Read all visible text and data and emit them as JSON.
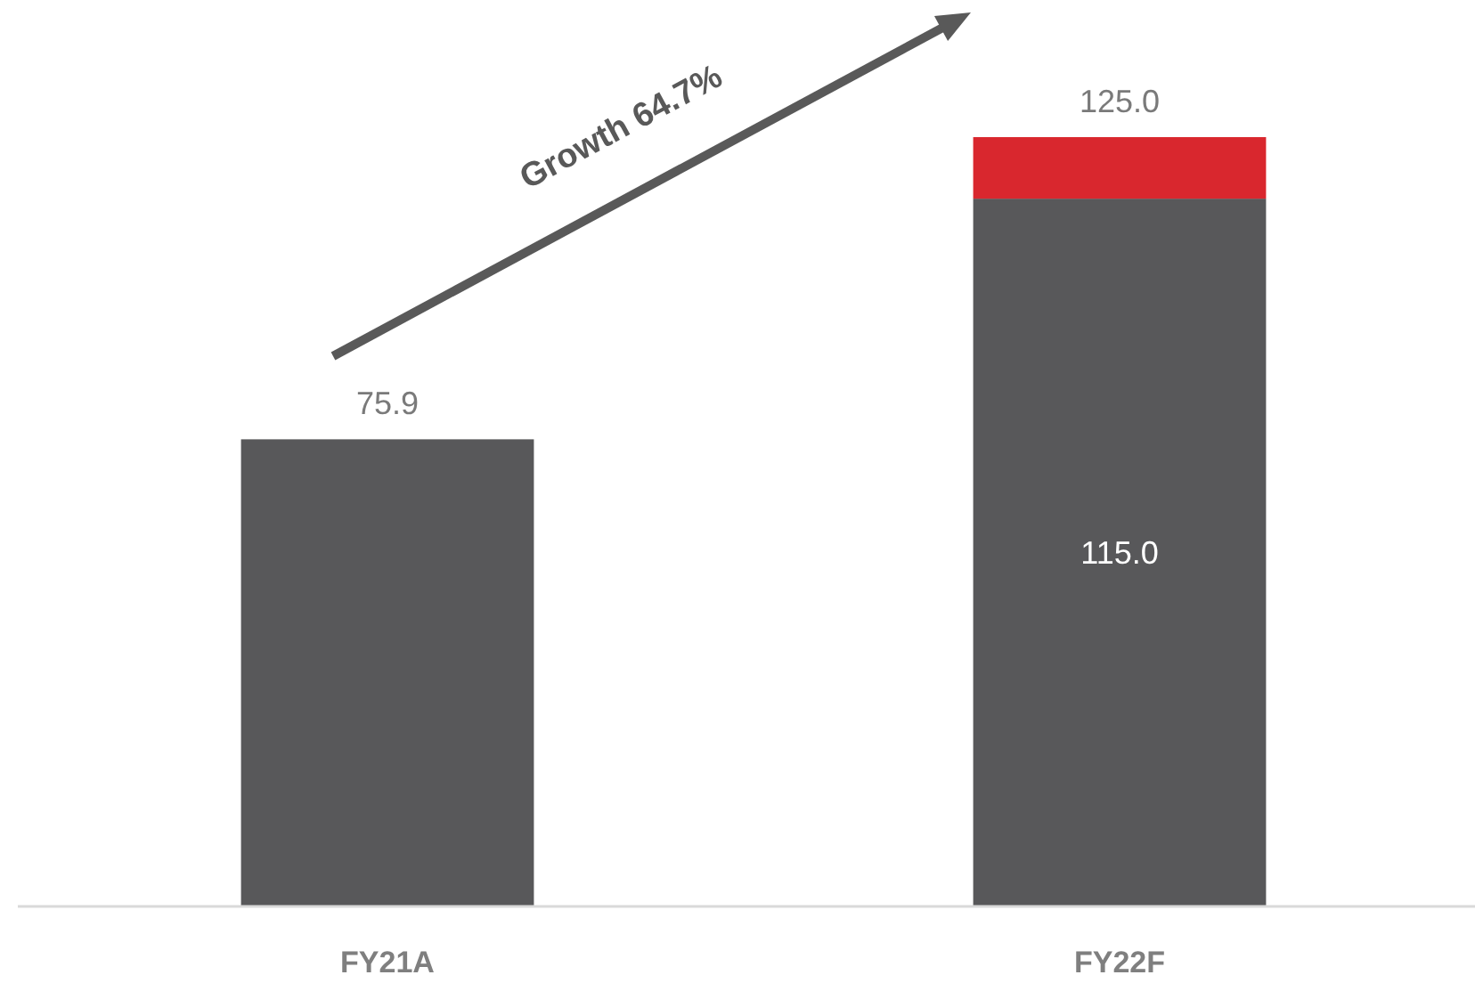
{
  "chart_data": {
    "type": "bar",
    "stacked": true,
    "categories": [
      "FY21A",
      "FY22F"
    ],
    "series": [
      {
        "color": "#58585a",
        "values": [
          75.9,
          115.0
        ],
        "value_labels": [
          null,
          "115.0"
        ]
      },
      {
        "color": "#d9272e",
        "values": [
          null,
          10.0
        ],
        "value_labels": [
          null,
          null
        ]
      }
    ],
    "totals": [
      "75.9",
      "125.0"
    ],
    "annotations": [
      "Growth 64.7%"
    ]
  }
}
